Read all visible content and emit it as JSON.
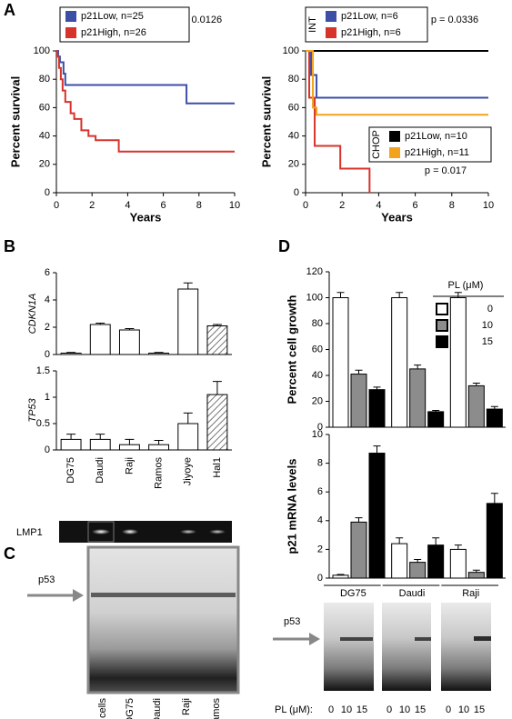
{
  "panel_labels": [
    "A",
    "B",
    "C",
    "D"
  ],
  "chart_data": [
    {
      "type": "line",
      "ylabel": "Percent survival",
      "xlabel": "Years",
      "annotations": [
        "p = 0.0126"
      ],
      "xlim": [
        0,
        10
      ],
      "ylim": [
        0,
        100
      ],
      "xticks": [
        0,
        2,
        4,
        6,
        8,
        10
      ],
      "yticks": [
        0,
        20,
        40,
        60,
        80,
        100
      ],
      "series": [
        {
          "name": "p21Low, n=25",
          "color": "#3d4ea6",
          "x": [
            0,
            0.1,
            0.1,
            0.2,
            0.2,
            0.4,
            0.4,
            0.5,
            0.5,
            7.3,
            7.3,
            10
          ],
          "values": [
            100,
            100,
            96,
            96,
            92,
            92,
            84,
            84,
            76,
            76,
            63,
            63
          ]
        },
        {
          "name": "p21High, n=26",
          "color": "#d7332b",
          "x": [
            0,
            0.05,
            0.05,
            0.15,
            0.15,
            0.25,
            0.25,
            0.35,
            0.35,
            0.5,
            0.5,
            0.8,
            0.8,
            1,
            1,
            1.4,
            1.4,
            1.8,
            1.8,
            2.2,
            2.2,
            3.5,
            3.5,
            10
          ],
          "values": [
            100,
            100,
            96,
            96,
            88,
            88,
            80,
            80,
            72,
            72,
            64,
            64,
            56,
            56,
            52,
            52,
            44,
            44,
            40,
            40,
            37,
            37,
            29,
            29
          ]
        }
      ]
    },
    {
      "type": "line",
      "ylabel": "Percent survival",
      "xlabel": "Years",
      "annotations": [
        "p = 0.0336",
        "p = 0.017"
      ],
      "legend_titles": [
        "INT",
        "CHOP"
      ],
      "xlim": [
        0,
        10
      ],
      "ylim": [
        0,
        100
      ],
      "xticks": [
        0,
        2,
        4,
        6,
        8,
        10
      ],
      "yticks": [
        0,
        20,
        40,
        60,
        80,
        100
      ],
      "series": [
        {
          "name": "p21Low, n=6",
          "color": "#3d4ea6",
          "x": [
            0,
            0.3,
            0.3,
            0.6,
            0.6,
            10
          ],
          "values": [
            100,
            100,
            83,
            83,
            67,
            67
          ]
        },
        {
          "name": "p21High, n=6",
          "color": "#d7332b",
          "x": [
            0,
            0.2,
            0.2,
            0.5,
            0.5,
            1.9,
            1.9,
            3.5,
            3.5
          ],
          "values": [
            100,
            100,
            67,
            67,
            33,
            33,
            17,
            17,
            0
          ]
        },
        {
          "name": "p21Low, n=10",
          "color": "#000000",
          "x": [
            0,
            10
          ],
          "values": [
            100,
            100
          ]
        },
        {
          "name": "p21High, n=11",
          "color": "#f2a21c",
          "x": [
            0,
            0.4,
            0.4,
            0.6,
            0.6,
            10
          ],
          "values": [
            100,
            100,
            60,
            60,
            55,
            55
          ]
        }
      ]
    },
    {
      "type": "bar",
      "ylabel": "CDKN1A",
      "ylim": [
        0,
        6
      ],
      "yticks": [
        0,
        2,
        4,
        6
      ],
      "values": [
        0.1,
        2.2,
        1.8,
        0.1,
        4.8,
        2.1
      ],
      "errors": [
        0.05,
        0.1,
        0.1,
        0.05,
        0.45,
        0.1
      ],
      "hatched": [
        false,
        false,
        false,
        false,
        false,
        true
      ]
    },
    {
      "type": "bar",
      "ylabel": "TP53",
      "ylim": [
        0,
        1.5
      ],
      "yticks": [
        0,
        0.5,
        1,
        1.5
      ],
      "categories": [
        "DG75",
        "Daudi",
        "Raji",
        "Ramos",
        "Jiyoye",
        "Hal1"
      ],
      "values": [
        0.2,
        0.2,
        0.1,
        0.1,
        0.5,
        1.05
      ],
      "errors": [
        0.1,
        0.1,
        0.1,
        0.08,
        0.2,
        0.25
      ],
      "hatched": [
        false,
        false,
        false,
        false,
        false,
        true
      ]
    },
    {
      "type": "grouped_bar",
      "ylabel": "Percent cell growth",
      "legend_title": "PL (μM)",
      "ylim": [
        0,
        120
      ],
      "yticks": [
        0,
        20,
        40,
        60,
        80,
        100,
        120
      ],
      "series": [
        {
          "name": "0",
          "color": "#ffffff",
          "values": [
            100,
            100,
            100
          ],
          "errors": [
            4,
            4,
            4
          ]
        },
        {
          "name": "10",
          "color": "#8c8c8c",
          "values": [
            41,
            45,
            32
          ],
          "errors": [
            3,
            3,
            2
          ]
        },
        {
          "name": "15",
          "color": "#000000",
          "values": [
            29,
            12,
            14
          ],
          "errors": [
            2,
            1,
            2
          ]
        }
      ]
    },
    {
      "type": "grouped_bar",
      "ylabel": "p21 mRNA levels",
      "ylim": [
        0,
        10
      ],
      "yticks": [
        0,
        2,
        4,
        6,
        8,
        10
      ],
      "categories": [
        "DG75",
        "Daudi",
        "Raji"
      ],
      "series": [
        {
          "color": "#ffffff",
          "values": [
            0.2,
            2.4,
            2.0
          ],
          "errors": [
            0.05,
            0.4,
            0.3
          ]
        },
        {
          "color": "#8c8c8c",
          "values": [
            3.9,
            1.1,
            0.4
          ],
          "errors": [
            0.3,
            0.2,
            0.15
          ]
        },
        {
          "color": "#000000",
          "values": [
            8.7,
            2.3,
            5.2
          ],
          "errors": [
            0.5,
            0.5,
            0.7
          ]
        }
      ]
    }
  ],
  "gels": {
    "lmp1": {
      "label": "LMP1"
    },
    "c": {
      "marker": "p53",
      "lanes": [
        "B cells",
        "DG75",
        "Daudi",
        "Raji",
        "Ramos"
      ]
    },
    "d": {
      "marker": "p53",
      "axis_label": "PL (μM):",
      "lanes": [
        "0",
        "10",
        "15"
      ]
    }
  }
}
